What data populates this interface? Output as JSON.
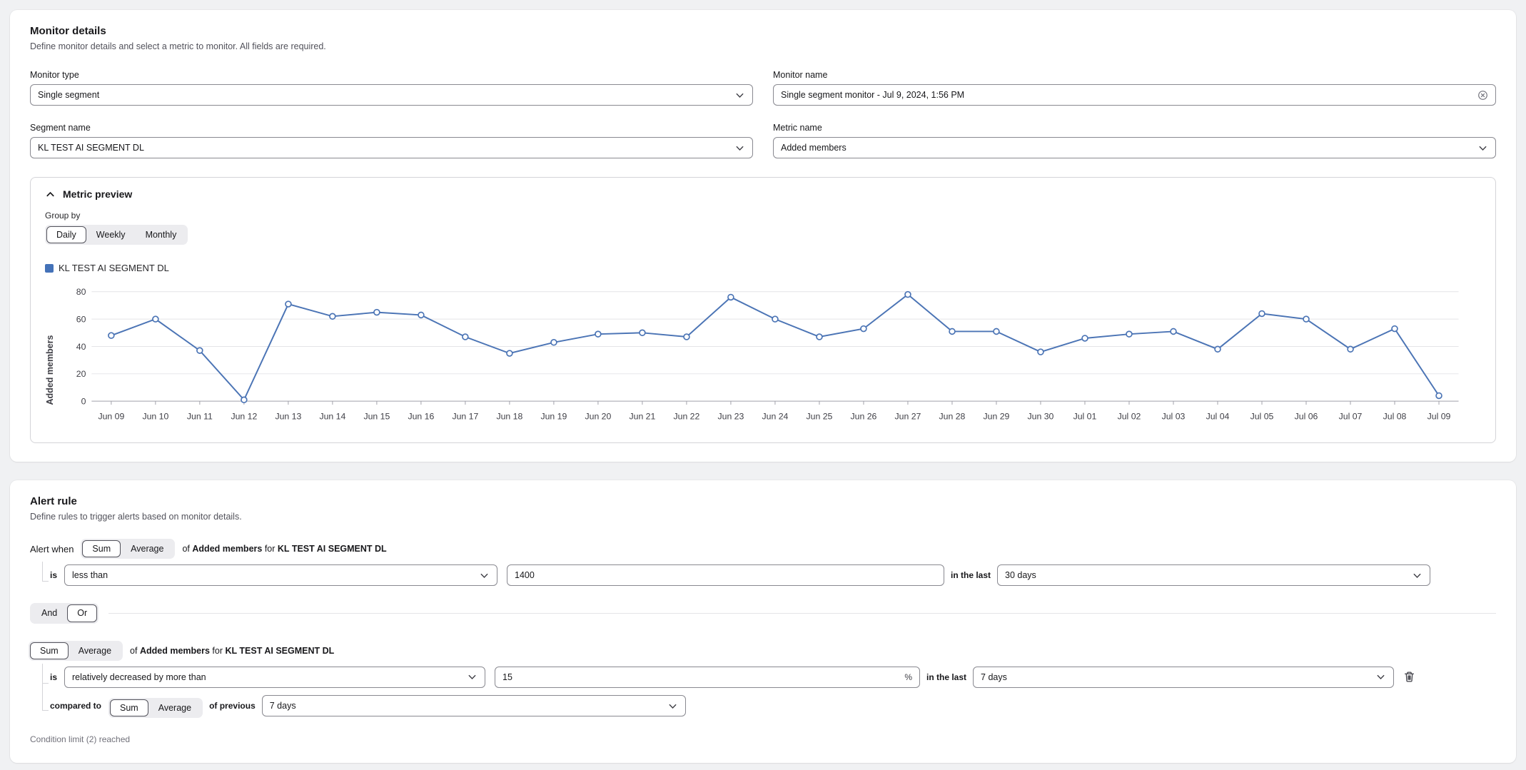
{
  "monitor_details": {
    "title": "Monitor details",
    "subtitle": "Define monitor details and select a metric to monitor. All fields are required.",
    "monitor_type": {
      "label": "Monitor type",
      "value": "Single segment"
    },
    "monitor_name": {
      "label": "Monitor name",
      "value": "Single segment monitor - Jul 9, 2024, 1:56 PM"
    },
    "segment_name": {
      "label": "Segment name",
      "value": "KL TEST AI SEGMENT DL"
    },
    "metric_name": {
      "label": "Metric name",
      "value": "Added members"
    }
  },
  "metric_preview": {
    "title": "Metric preview",
    "group_by_label": "Group by",
    "group_by_options": [
      "Daily",
      "Weekly",
      "Monthly"
    ],
    "group_by_selected": "Daily",
    "legend_label": "KL TEST AI SEGMENT DL",
    "legend_color": "#4472b8"
  },
  "chart_data": {
    "type": "line",
    "title": "",
    "xlabel": "",
    "ylabel": "Added members",
    "ylim": [
      0,
      80
    ],
    "yticks": [
      0,
      20,
      40,
      60,
      80
    ],
    "grid": true,
    "legend_position": "top-left",
    "x": [
      "Jun 09",
      "Jun 10",
      "Jun 11",
      "Jun 12",
      "Jun 13",
      "Jun 14",
      "Jun 15",
      "Jun 16",
      "Jun 17",
      "Jun 18",
      "Jun 19",
      "Jun 20",
      "Jun 21",
      "Jun 22",
      "Jun 23",
      "Jun 24",
      "Jun 25",
      "Jun 26",
      "Jun 27",
      "Jun 28",
      "Jun 29",
      "Jun 30",
      "Jul 01",
      "Jul 02",
      "Jul 03",
      "Jul 04",
      "Jul 05",
      "Jul 06",
      "Jul 07",
      "Jul 08",
      "Jul 09"
    ],
    "series": [
      {
        "name": "KL TEST AI SEGMENT DL",
        "color": "#4b74b5",
        "values": [
          48,
          60,
          37,
          1,
          71,
          62,
          65,
          63,
          47,
          35,
          43,
          49,
          50,
          47,
          76,
          60,
          47,
          53,
          78,
          51,
          51,
          36,
          46,
          49,
          51,
          38,
          64,
          60,
          38,
          53,
          4
        ]
      }
    ]
  },
  "alert_rule": {
    "title": "Alert rule",
    "subtitle": "Define rules to trigger alerts based on monitor details.",
    "alert_when_label": "Alert when",
    "agg_options": [
      "Sum",
      "Average"
    ],
    "combinator_options": [
      "And",
      "Or"
    ],
    "combinator_selected": "Or",
    "of_label": "of",
    "for_label": "for",
    "is_label": "is",
    "in_the_last_label": "in the last",
    "compared_to_label": "compared to",
    "of_previous_label": "of previous",
    "conditions": [
      {
        "agg_selected": "Sum",
        "metric": "Added members",
        "segment": "KL TEST AI SEGMENT DL",
        "operator": "less than",
        "threshold": "1400",
        "threshold_suffix": "",
        "window": "30 days"
      },
      {
        "agg_selected": "Sum",
        "metric": "Added members",
        "segment": "KL TEST AI SEGMENT DL",
        "operator": "relatively decreased by more than",
        "threshold": "15",
        "threshold_suffix": "%",
        "window": "7 days",
        "compare_agg_selected": "Sum",
        "compare_window": "7 days"
      }
    ],
    "footer_note": "Condition limit (2) reached"
  }
}
